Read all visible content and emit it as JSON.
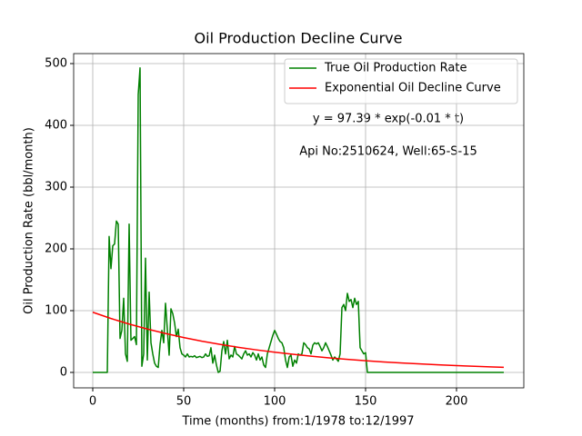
{
  "chart_data": {
    "type": "line",
    "title": "Oil Production Decline Curve",
    "xlabel": "Time (months) from:1/1978 to:12/1997",
    "ylabel": "Oil Production Rate (bbl/month)",
    "annotations": [
      "y = 97.39 * exp(-0.01 * t)",
      "Api No:2510624, Well:65-S-15"
    ],
    "xlim": [
      -10.5,
      237
    ],
    "ylim": [
      -25,
      516.2
    ],
    "xticks": [
      0,
      50,
      100,
      150,
      200
    ],
    "yticks": [
      0,
      100,
      200,
      300,
      400,
      500
    ],
    "grid": true,
    "legend": "upper right",
    "series": [
      {
        "name": "True Oil Production Rate",
        "color": "#008000",
        "x": [
          0,
          8,
          9,
          10,
          11,
          12,
          13,
          14,
          15,
          16,
          17,
          18,
          19,
          20,
          21,
          22,
          23,
          24,
          25,
          26,
          27,
          28,
          29,
          30,
          31,
          32,
          33,
          34,
          35,
          36,
          37,
          38,
          39,
          40,
          41,
          42,
          43,
          44,
          45,
          46,
          47,
          48,
          49,
          50,
          51,
          52,
          53,
          54,
          55,
          56,
          57,
          58,
          59,
          60,
          61,
          62,
          63,
          64,
          65,
          66,
          67,
          68,
          69,
          70,
          71,
          72,
          73,
          74,
          75,
          76,
          77,
          78,
          79,
          80,
          81,
          82,
          83,
          84,
          85,
          86,
          87,
          88,
          89,
          90,
          91,
          92,
          93,
          94,
          95,
          96,
          97,
          98,
          99,
          100,
          101,
          102,
          103,
          104,
          105,
          106,
          107,
          108,
          109,
          110,
          111,
          112,
          113,
          114,
          115,
          116,
          117,
          118,
          119,
          120,
          121,
          122,
          123,
          124,
          125,
          126,
          127,
          128,
          129,
          130,
          131,
          132,
          133,
          134,
          135,
          136,
          137,
          138,
          139,
          140,
          141,
          142,
          143,
          144,
          145,
          146,
          147,
          148,
          149,
          150,
          151,
          152,
          226
        ],
        "values": [
          0,
          0,
          220,
          168,
          205,
          208,
          245,
          240,
          55,
          68,
          120,
          30,
          18,
          240,
          52,
          55,
          58,
          45,
          450,
          493,
          10,
          30,
          185,
          20,
          130,
          48,
          30,
          15,
          10,
          8,
          45,
          68,
          48,
          112,
          70,
          28,
          103,
          95,
          80,
          58,
          70,
          40,
          30,
          28,
          25,
          30,
          25,
          26,
          25,
          27,
          24,
          25,
          26,
          24,
          25,
          30,
          26,
          27,
          40,
          15,
          28,
          12,
          0,
          2,
          35,
          50,
          30,
          52,
          22,
          28,
          25,
          42,
          30,
          28,
          25,
          22,
          30,
          35,
          28,
          30,
          25,
          32,
          28,
          20,
          30,
          20,
          25,
          12,
          8,
          30,
          40,
          50,
          60,
          68,
          62,
          55,
          50,
          48,
          40,
          20,
          8,
          25,
          28,
          10,
          20,
          15,
          30,
          28,
          30,
          48,
          45,
          40,
          38,
          30,
          44,
          48,
          46,
          48,
          42,
          35,
          40,
          48,
          42,
          35,
          28,
          20,
          25,
          22,
          18,
          30,
          105,
          110,
          100,
          128,
          115,
          118,
          105,
          120,
          110,
          115,
          40,
          35,
          30,
          32,
          0,
          0,
          0
        ]
      },
      {
        "name": "Exponential Oil Decline Curve",
        "color": "#ff0000",
        "x": [
          0,
          10,
          20,
          30,
          40,
          50,
          60,
          70,
          80,
          90,
          100,
          110,
          120,
          130,
          140,
          150,
          160,
          170,
          180,
          190,
          200,
          210,
          220,
          226
        ],
        "values": [
          97.4,
          87.3,
          78.3,
          70.2,
          63.0,
          56.5,
          50.6,
          45.4,
          40.7,
          36.5,
          32.7,
          29.4,
          26.3,
          23.6,
          21.2,
          19.0,
          17.0,
          15.3,
          13.7,
          12.3,
          11.0,
          9.9,
          8.9,
          8.3
        ]
      }
    ]
  }
}
